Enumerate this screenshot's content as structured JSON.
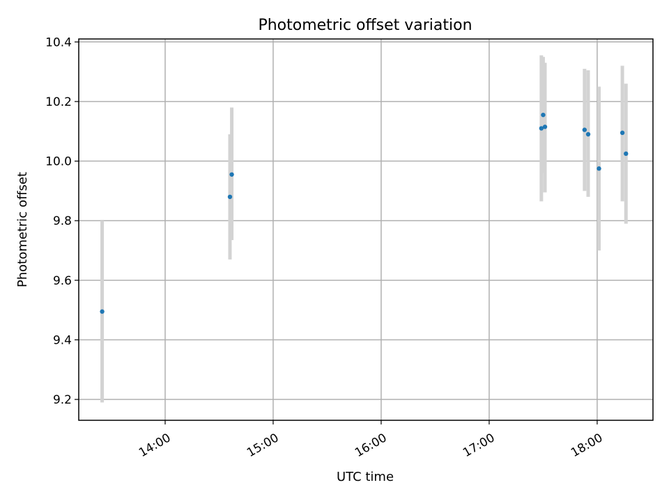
{
  "chart_data": {
    "type": "scatter",
    "title": "Photometric offset variation",
    "xlabel": "UTC time",
    "ylabel": "Photometric offset",
    "x_ticks": [
      "14:00",
      "15:00",
      "16:00",
      "17:00",
      "18:00"
    ],
    "y_ticks": [
      "9.2",
      "9.4",
      "9.6",
      "9.8",
      "10.0",
      "10.2",
      "10.4"
    ],
    "x_range": [
      "13:12",
      "18:31"
    ],
    "ylim": [
      9.13,
      10.41
    ],
    "grid": true,
    "marker_color": "#1f77b4",
    "errorbar_color": "#d3d3d3",
    "points": [
      {
        "x": "13:25",
        "y": 9.495,
        "ylow": 9.19,
        "yhigh": 9.8
      },
      {
        "x": "14:36",
        "y": 9.88,
        "ylow": 9.67,
        "yhigh": 10.09
      },
      {
        "x": "14:37",
        "y": 9.955,
        "ylow": 9.735,
        "yhigh": 10.18
      },
      {
        "x": "17:29",
        "y": 10.11,
        "ylow": 9.865,
        "yhigh": 10.355
      },
      {
        "x": "17:30",
        "y": 10.155,
        "ylow": 9.96,
        "yhigh": 10.35
      },
      {
        "x": "17:31",
        "y": 10.115,
        "ylow": 9.895,
        "yhigh": 10.33
      },
      {
        "x": "17:53",
        "y": 10.105,
        "ylow": 9.9,
        "yhigh": 10.31
      },
      {
        "x": "17:55",
        "y": 10.09,
        "ylow": 9.88,
        "yhigh": 10.305
      },
      {
        "x": "18:01",
        "y": 9.975,
        "ylow": 9.7,
        "yhigh": 10.25
      },
      {
        "x": "18:14",
        "y": 10.095,
        "ylow": 9.865,
        "yhigh": 10.32
      },
      {
        "x": "18:16",
        "y": 10.025,
        "ylow": 9.79,
        "yhigh": 10.26
      }
    ]
  }
}
